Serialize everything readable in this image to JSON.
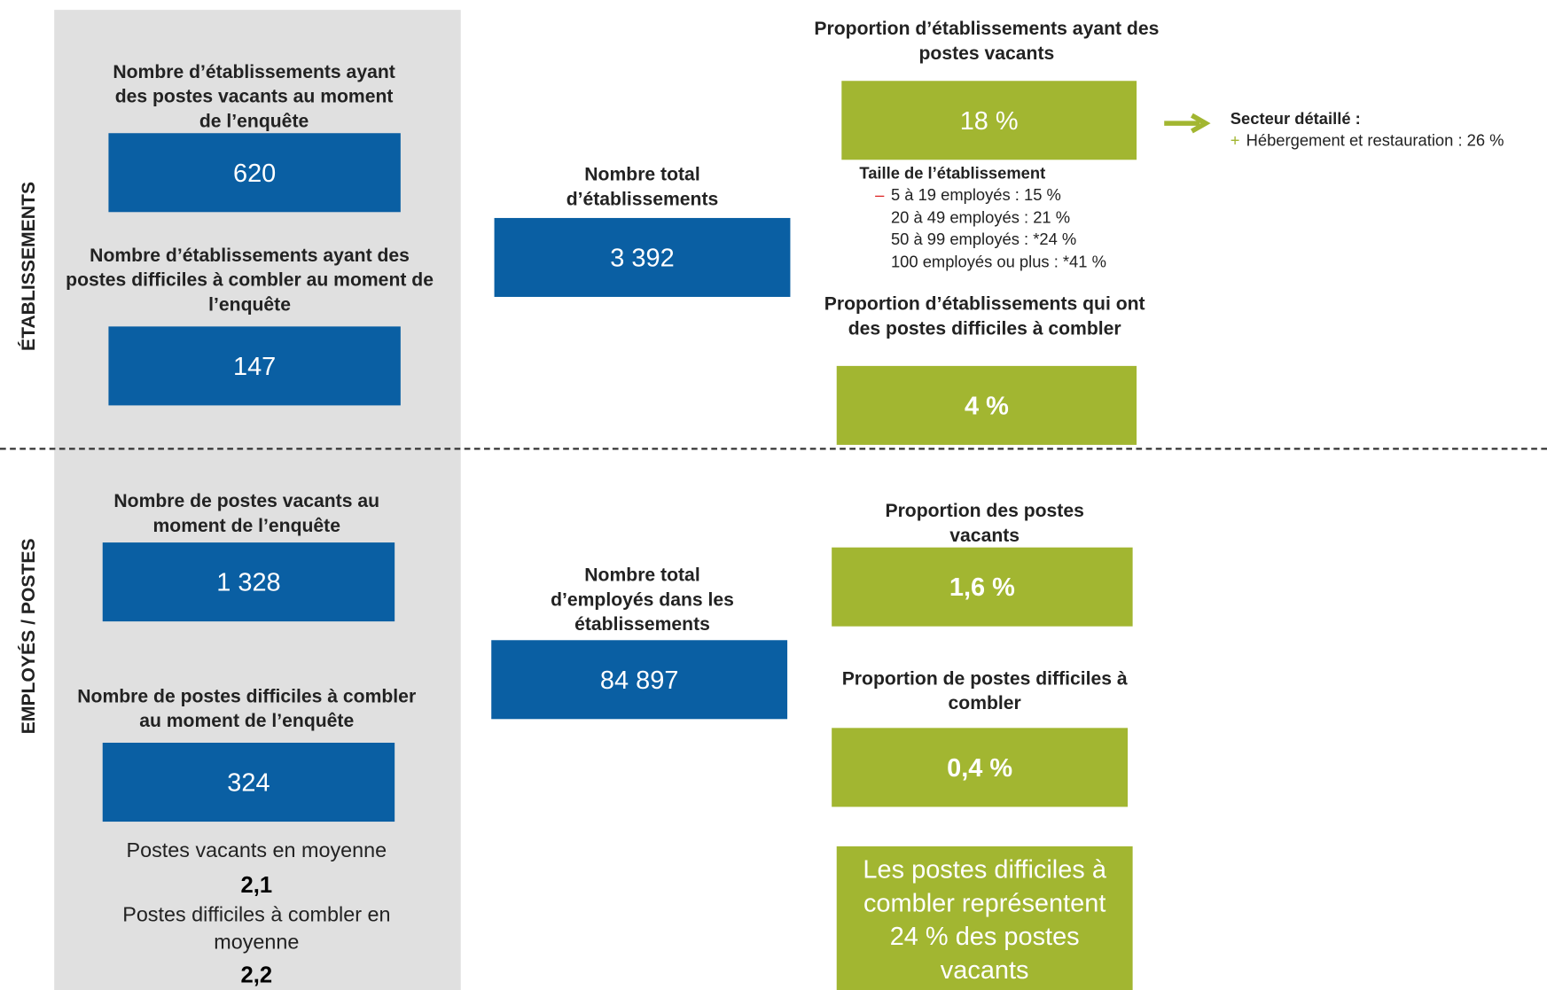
{
  "sections": [
    "ÉTABLISSEMENTS",
    "EMPLOYÉS / POSTES"
  ],
  "etablissements": {
    "vacants": {
      "title": "Nombre d’établissements ayant des postes vacants au moment de l’enquête",
      "value": "620"
    },
    "difficiles": {
      "title": "Nombre d’établissements ayant des postes difficiles à combler au moment de l’enquête",
      "value": "147"
    },
    "total": {
      "title": "Nombre total d’établissements",
      "value": "3 392"
    },
    "prop_vacants": {
      "title": "Proportion d’établissements ayant des postes vacants",
      "value": "18 %"
    },
    "secteur": {
      "title": "Secteur détaillé :",
      "sign": "+",
      "item": "Hébergement et restauration : 26 %"
    },
    "taille": {
      "title": "Taille de l’établissement",
      "sign": "–",
      "items": [
        "5 à 19 employés : 15 %",
        "20 à 49 employés : 21 %",
        "50 à 99 employés : *24 %",
        "100 employés ou plus : *41 %"
      ]
    },
    "prop_difficiles": {
      "title": "Proportion d’établissements qui ont des postes difficiles à combler",
      "value": "4 %"
    }
  },
  "employes": {
    "vacants": {
      "title": "Nombre de postes vacants au moment de l’enquête",
      "value": "1 328"
    },
    "difficiles": {
      "title": "Nombre de postes difficiles à combler au moment de l’enquête",
      "value": "324"
    },
    "moyenne_vacants": {
      "title": "Postes vacants en moyenne",
      "value": "2,1"
    },
    "moyenne_difficiles": {
      "title": "Postes difficiles à combler en moyenne",
      "value": "2,2"
    },
    "total": {
      "title": "Nombre total d’employés dans les établissements",
      "value": "84 897"
    },
    "prop_vacants": {
      "title": "Proportion des postes vacants",
      "value": "1,6 %"
    },
    "prop_difficiles": {
      "title": "Proportion de postes difficiles à combler",
      "value": "0,4 %"
    },
    "note": "Les postes difficiles à combler représentent 24 % des postes vacants"
  }
}
